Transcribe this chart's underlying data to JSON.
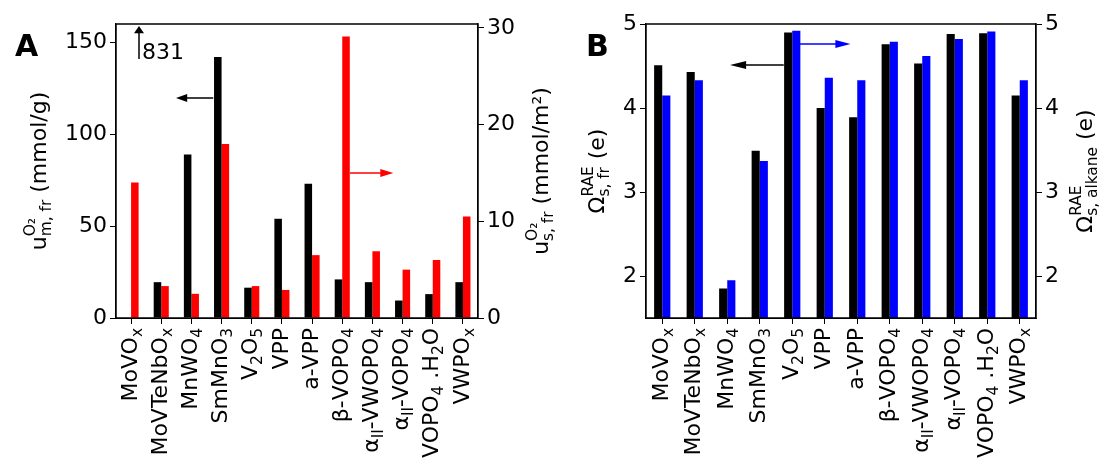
{
  "chart_data": [
    {
      "type": "bar",
      "title": "A",
      "categories": [
        "MoVO$_{x}$",
        "MoVTeNbO$_{x}$",
        "MnWO$_{4}$",
        "SmMnO$_{3}$",
        "V$_{2}$O$_{5}$",
        "VPP",
        "a-VPP",
        "β-VOPO$_{4}$",
        "α$_{II}$-VWOPO$_{4}$",
        "α$_{II}$-VOPO$_{4}$",
        "VOPO$_{4}$ .H$_{2}$O",
        "VWPO$_{x}$"
      ],
      "series": [
        {
          "color": "#000000",
          "axis": "y",
          "values": [
            null,
            19.5,
            89,
            142,
            16.5,
            54,
            73,
            21,
            19.5,
            9.5,
            13,
            19.5
          ]
        },
        {
          "color": "#ff0000",
          "axis": "y2",
          "values": [
            14.0,
            3.3,
            2.5,
            18.0,
            3.3,
            2.9,
            6.5,
            29.1,
            6.9,
            5.0,
            6.0,
            10.5
          ]
        }
      ],
      "ylabel": "u$^{O₂}$$_{m, fr}$ (mmol/g)",
      "y2label": "u$^{O₂}$$_{s, fr}$ (mmol/m²)",
      "ylim": [
        0,
        160
      ],
      "yticks": [
        0,
        50,
        100,
        150
      ],
      "y2lim": [
        0,
        30.4
      ],
      "y2ticks": [
        0,
        10,
        20,
        30
      ],
      "annotations": [
        "831"
      ],
      "grid": false,
      "legend": false
    },
    {
      "type": "bar",
      "title": "B",
      "categories": [
        "MoVO$_{x}$",
        "MoVTeNbO$_{x}$",
        "MnWO$_{4}$",
        "SmMnO$_{3}$",
        "V$_{2}$O$_{5}$",
        "VPP",
        "a-VPP",
        "β-VOPO$_{4}$",
        "α$_{II}$-VWOPO$_{4}$",
        "α$_{II}$-VOPO$_{4}$",
        "VOPO$_{4}$ .H$_{2}$O",
        "VWPO$_{x}$"
      ],
      "series": [
        {
          "color": "#000000",
          "axis": "y",
          "values": [
            4.51,
            4.43,
            1.85,
            3.49,
            4.9,
            4.0,
            3.89,
            4.76,
            4.53,
            4.88,
            4.89,
            4.15
          ]
        },
        {
          "color": "#0000ff",
          "axis": "y2",
          "values": [
            4.15,
            4.33,
            1.95,
            3.37,
            4.92,
            4.36,
            4.33,
            4.79,
            4.62,
            4.82,
            4.91,
            4.33
          ]
        }
      ],
      "ylabel": "Ω$^{RAE}$$_{s, fr}$ (e)",
      "y2label": "Ω$^{RAE}$$_{s, alkane}$ (e)",
      "ylim": [
        1.5,
        5
      ],
      "yticks": [
        2,
        3,
        4,
        5
      ],
      "y2lim": [
        1.5,
        5
      ],
      "y2ticks": [
        2,
        3,
        4,
        5
      ],
      "grid": false,
      "legend": false
    }
  ]
}
